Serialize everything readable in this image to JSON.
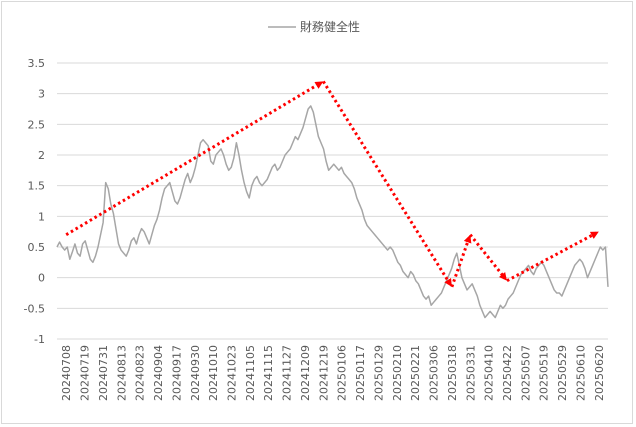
{
  "chart_data": {
    "type": "line",
    "title": "",
    "xlabel": "",
    "ylabel": "",
    "ylim": [
      -1,
      3.5
    ],
    "yticks": [
      "3.5",
      "3",
      "2.5",
      "2",
      "1.5",
      "1",
      "0.5",
      "0",
      "-0.5",
      "-1"
    ],
    "xticks": [
      "20240708",
      "20240719",
      "20240731",
      "20240813",
      "20240823",
      "20240904",
      "20240917",
      "20240930",
      "20241010",
      "20241023",
      "20241105",
      "20241115",
      "20241127",
      "20241209",
      "20241219",
      "20250106",
      "20250117",
      "20250129",
      "20250210",
      "20250221",
      "20250306",
      "20250318",
      "20250331",
      "20250410",
      "20250422",
      "20250507",
      "20250519",
      "20250529",
      "20250610",
      "20250620"
    ],
    "grid": "horizontal",
    "legend": "top-center",
    "series": [
      {
        "name": "財務健全性",
        "color": "#a6a6a6",
        "values": [
          0.5,
          0.58,
          0.5,
          0.45,
          0.5,
          0.3,
          0.42,
          0.55,
          0.4,
          0.35,
          0.55,
          0.6,
          0.45,
          0.3,
          0.25,
          0.35,
          0.5,
          0.7,
          0.9,
          1.55,
          1.45,
          1.2,
          1.05,
          0.8,
          0.55,
          0.45,
          0.4,
          0.35,
          0.45,
          0.6,
          0.65,
          0.55,
          0.7,
          0.8,
          0.75,
          0.65,
          0.55,
          0.7,
          0.85,
          0.95,
          1.1,
          1.3,
          1.45,
          1.5,
          1.55,
          1.4,
          1.25,
          1.2,
          1.3,
          1.45,
          1.6,
          1.7,
          1.55,
          1.65,
          1.8,
          2.0,
          2.2,
          2.25,
          2.2,
          2.15,
          1.9,
          1.85,
          2.0,
          2.05,
          2.1,
          2.0,
          1.85,
          1.75,
          1.8,
          1.95,
          2.2,
          2.0,
          1.75,
          1.55,
          1.4,
          1.3,
          1.5,
          1.6,
          1.65,
          1.55,
          1.5,
          1.55,
          1.6,
          1.7,
          1.8,
          1.85,
          1.75,
          1.8,
          1.9,
          2.0,
          2.05,
          2.1,
          2.2,
          2.3,
          2.25,
          2.35,
          2.45,
          2.6,
          2.75,
          2.8,
          2.7,
          2.5,
          2.3,
          2.2,
          2.1,
          1.9,
          1.75,
          1.8,
          1.85,
          1.8,
          1.75,
          1.8,
          1.7,
          1.65,
          1.6,
          1.55,
          1.45,
          1.3,
          1.2,
          1.1,
          0.95,
          0.85,
          0.8,
          0.75,
          0.7,
          0.65,
          0.6,
          0.55,
          0.5,
          0.45,
          0.5,
          0.45,
          0.35,
          0.25,
          0.2,
          0.1,
          0.05,
          0.0,
          0.1,
          0.05,
          -0.05,
          -0.1,
          -0.2,
          -0.3,
          -0.35,
          -0.3,
          -0.45,
          -0.4,
          -0.35,
          -0.3,
          -0.25,
          -0.15,
          -0.05,
          0.05,
          0.15,
          0.3,
          0.4,
          0.2,
          0.0,
          -0.1,
          -0.2,
          -0.15,
          -0.1,
          -0.2,
          -0.3,
          -0.45,
          -0.55,
          -0.65,
          -0.6,
          -0.55,
          -0.6,
          -0.65,
          -0.55,
          -0.45,
          -0.5,
          -0.45,
          -0.35,
          -0.3,
          -0.25,
          -0.15,
          -0.05,
          0.05,
          0.1,
          0.15,
          0.2,
          0.1,
          0.05,
          0.15,
          0.2,
          0.25,
          0.2,
          0.1,
          0.0,
          -0.1,
          -0.2,
          -0.25,
          -0.25,
          -0.3,
          -0.2,
          -0.1,
          0.0,
          0.1,
          0.2,
          0.25,
          0.3,
          0.25,
          0.15,
          0.0,
          0.1,
          0.2,
          0.3,
          0.4,
          0.5,
          0.45,
          0.5,
          -0.15
        ]
      }
    ],
    "annotations": [
      {
        "type": "arrow",
        "style": "dotted",
        "color": "#ff0000",
        "from": {
          "x": "20240708",
          "y": 0.7
        },
        "to": {
          "x": "20241219",
          "y": 3.2
        }
      },
      {
        "type": "arrow",
        "style": "dotted",
        "color": "#ff0000",
        "from": {
          "x": "20241219",
          "y": 3.2
        },
        "to": {
          "x": "20250318",
          "y": -0.15
        }
      },
      {
        "type": "arrow",
        "style": "dotted",
        "color": "#ff0000",
        "from": {
          "x": "20250318",
          "y": -0.15
        },
        "to": {
          "x": "20250331",
          "y": 0.7
        }
      },
      {
        "type": "arrow",
        "style": "dotted",
        "color": "#ff0000",
        "from": {
          "x": "20250331",
          "y": 0.7
        },
        "to": {
          "x": "20250422",
          "y": -0.05
        }
      },
      {
        "type": "arrow",
        "style": "dotted",
        "color": "#ff0000",
        "from": {
          "x": "20250422",
          "y": -0.05
        },
        "to": {
          "x": "20250620",
          "y": 0.75
        }
      }
    ]
  }
}
